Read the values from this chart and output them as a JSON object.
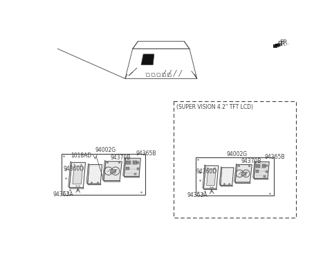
{
  "bg_color": "#ffffff",
  "line_color": "#404040",
  "text_color": "#404040",
  "fr_label": "FR.",
  "super_vision_label": "(SUPER VISION 4.2\" TFT LCD)",
  "parts_left": [
    "94002G",
    "94365B",
    "1018AD",
    "94370B",
    "94360D",
    "94363A"
  ],
  "parts_right": [
    "94002G",
    "94365B",
    "94370B",
    "94360D",
    "94363A"
  ]
}
